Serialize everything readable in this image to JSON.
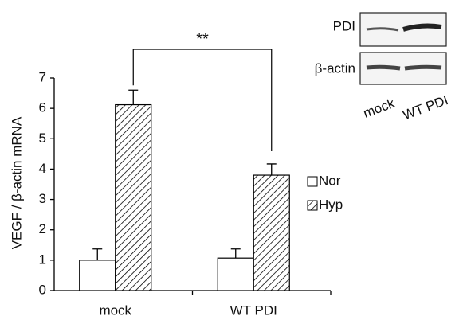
{
  "chart_data": {
    "type": "bar",
    "y_label": "VEGF / β-actin mRNA",
    "categories": [
      "mock",
      "WT PDI"
    ],
    "series": [
      {
        "name": "Nor",
        "color": "#ffffff",
        "hatch": false,
        "values": [
          1.0,
          1.07
        ],
        "errors": [
          0.37,
          0.3
        ]
      },
      {
        "name": "Hyp",
        "color": "#ffffff",
        "hatch": true,
        "values": [
          6.12,
          3.8
        ],
        "errors": [
          0.48,
          0.37
        ]
      }
    ],
    "ylim": [
      0,
      7
    ],
    "yticks": [
      0,
      1,
      2,
      3,
      4,
      5,
      6,
      7
    ],
    "annotation": "**"
  },
  "blot": {
    "rows": [
      "PDI",
      "β-actin"
    ],
    "lanes": [
      "mock",
      "WT PDI"
    ]
  }
}
